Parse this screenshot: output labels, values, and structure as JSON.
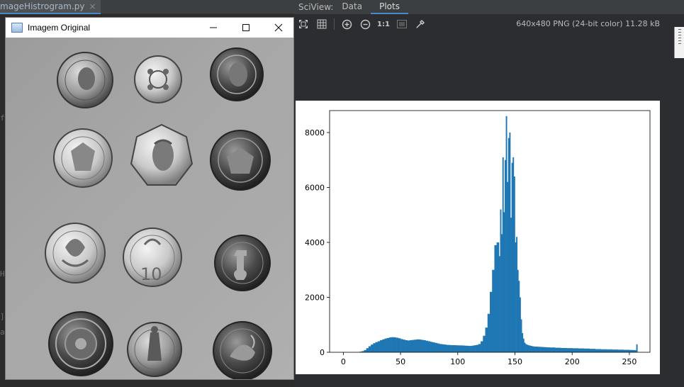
{
  "editor": {
    "tab_label": "mageHistrogram.py",
    "tab_close": "×",
    "gutter_marks": [
      "f",
      "H",
      "]",
      "a"
    ]
  },
  "sciview": {
    "title": "SciView:",
    "tabs": [
      {
        "label": "Data",
        "active": false
      },
      {
        "label": "Plots",
        "active": true
      }
    ],
    "toolbar": {
      "fit_icon": "fit-to-window-icon",
      "grid_icon": "grid-icon",
      "zoom_in_icon": "zoom-in-icon",
      "zoom_out_icon": "zoom-out-icon",
      "actual_size_label": "1:1",
      "background_icon": "background-icon",
      "color_picker_icon": "eyedropper-icon"
    },
    "image_info": "640x480 PNG (24-bit color) 11.28 kB"
  },
  "cv_window": {
    "title": "Imagem Original",
    "minimize": "—",
    "maximize": "☐",
    "close": "✕"
  },
  "chart_data": {
    "type": "bar",
    "title": "",
    "xlabel": "",
    "ylabel": "",
    "xlim": [
      -12,
      268
    ],
    "ylim": [
      0,
      8800
    ],
    "xticks": [
      0,
      50,
      100,
      150,
      200,
      250
    ],
    "yticks": [
      0,
      2000,
      4000,
      6000,
      8000
    ],
    "color": "#1f77b4",
    "x": [
      14,
      16,
      18,
      20,
      22,
      24,
      26,
      28,
      30,
      32,
      34,
      36,
      38,
      40,
      42,
      44,
      46,
      48,
      50,
      52,
      54,
      56,
      58,
      60,
      62,
      64,
      66,
      68,
      70,
      72,
      74,
      76,
      78,
      80,
      82,
      84,
      86,
      88,
      90,
      92,
      94,
      96,
      98,
      100,
      102,
      104,
      106,
      108,
      110,
      112,
      114,
      116,
      118,
      120,
      122,
      124,
      126,
      128,
      130,
      132,
      134,
      136,
      137,
      138,
      139,
      140,
      141,
      142,
      143,
      144,
      145,
      146,
      147,
      148,
      149,
      150,
      151,
      152,
      153,
      154,
      155,
      156,
      157,
      158,
      159,
      160,
      161,
      162,
      163,
      164,
      165,
      166,
      168,
      170,
      172,
      174,
      176,
      178,
      180,
      185,
      190,
      195,
      200,
      205,
      210,
      215,
      220,
      225,
      230,
      235,
      240,
      245,
      250,
      253,
      255,
      256
    ],
    "values": [
      20,
      40,
      80,
      150,
      220,
      280,
      330,
      370,
      400,
      440,
      470,
      500,
      520,
      540,
      550,
      545,
      530,
      510,
      480,
      460,
      440,
      430,
      440,
      450,
      460,
      470,
      465,
      450,
      440,
      420,
      400,
      380,
      360,
      340,
      320,
      300,
      290,
      280,
      270,
      265,
      260,
      260,
      255,
      250,
      250,
      245,
      240,
      235,
      230,
      240,
      255,
      270,
      300,
      400,
      600,
      900,
      1400,
      2200,
      3000,
      3900,
      4000,
      3500,
      5200,
      4300,
      7100,
      5100,
      7000,
      8600,
      6200,
      7800,
      8000,
      4900,
      6900,
      7100,
      6400,
      4000,
      4200,
      3000,
      2600,
      2000,
      1200,
      700,
      500,
      350,
      300,
      280,
      260,
      250,
      240,
      230,
      220,
      210,
      205,
      200,
      195,
      190,
      185,
      180,
      175,
      165,
      155,
      150,
      145,
      140,
      135,
      125,
      115,
      110,
      105,
      100,
      95,
      90,
      85,
      80,
      75,
      290
    ]
  }
}
